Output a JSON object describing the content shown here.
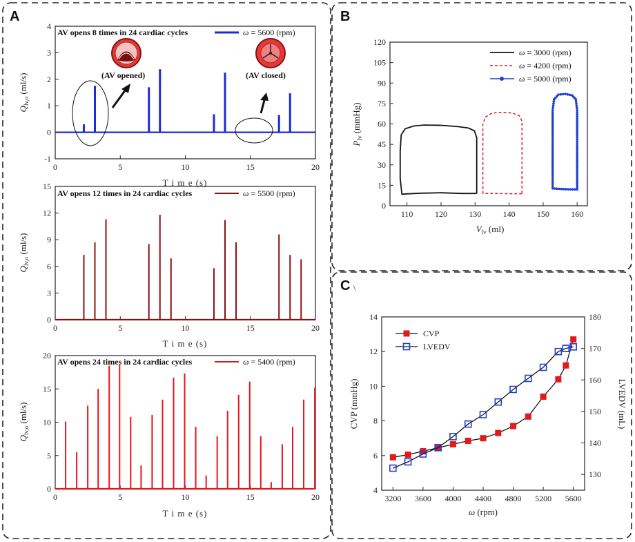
{
  "panels": {
    "A": "A",
    "B": "B",
    "C": "C",
    "c_mark": "\\"
  },
  "colors": {
    "blue": "#1a2bd6",
    "darkred": "#8b1111",
    "red": "#e8141c",
    "black": "#111111",
    "marker_red": "#e31a1c",
    "marker_blue": "#1f3fd0"
  },
  "chart_data": [
    {
      "id": "a1",
      "type": "line",
      "title": "AV opens 8 times in 24 cardiac cycles",
      "legend": {
        "symbol": "ω",
        "text": " = 5600 (rpm)"
      },
      "xlabel": "T i m e  (s)",
      "ylabel": {
        "base": "Q",
        "sub": "lv,o",
        "unit": " (ml/s)"
      },
      "xlim": [
        0,
        20
      ],
      "ylim": [
        -1,
        4
      ],
      "xticks": [
        0,
        5,
        10,
        15,
        20
      ],
      "yticks": [
        -1,
        0,
        1,
        2,
        3,
        4
      ],
      "baseline": 0,
      "spikes": [
        {
          "x": 2.2,
          "y": 0.3
        },
        {
          "x": 3.05,
          "y": 1.75
        },
        {
          "x": 7.2,
          "y": 1.7
        },
        {
          "x": 8.05,
          "y": 2.38
        },
        {
          "x": 12.2,
          "y": 0.68
        },
        {
          "x": 13.05,
          "y": 2.25
        },
        {
          "x": 17.2,
          "y": 0.65
        },
        {
          "x": 18.05,
          "y": 1.47
        }
      ],
      "annotations": {
        "opened": "(AV opened)",
        "closed": "(AV closed)"
      }
    },
    {
      "id": "a2",
      "type": "line",
      "title": "AV opens 12 times in 24 cardiac cycles",
      "legend": {
        "symbol": "ω",
        "text": " = 5500 (rpm)"
      },
      "xlabel": "T i m e  (s)",
      "ylabel": {
        "base": "Q",
        "sub": "lv,o",
        "unit": " (ml/s)"
      },
      "xlim": [
        0,
        20
      ],
      "ylim": [
        0,
        15
      ],
      "xticks": [
        0,
        5,
        10,
        15,
        20
      ],
      "yticks": [
        0,
        3,
        6,
        9,
        12,
        15
      ],
      "baseline": 0,
      "spikes": [
        {
          "x": 2.2,
          "y": 7.3
        },
        {
          "x": 3.05,
          "y": 8.7
        },
        {
          "x": 3.9,
          "y": 11.3
        },
        {
          "x": 7.2,
          "y": 8.5
        },
        {
          "x": 8.05,
          "y": 11.8
        },
        {
          "x": 8.9,
          "y": 6.9
        },
        {
          "x": 12.2,
          "y": 5.8
        },
        {
          "x": 13.05,
          "y": 11.2
        },
        {
          "x": 13.9,
          "y": 8.7
        },
        {
          "x": 17.2,
          "y": 9.6
        },
        {
          "x": 18.05,
          "y": 7.3
        },
        {
          "x": 18.9,
          "y": 6.8
        }
      ]
    },
    {
      "id": "a3",
      "type": "line",
      "title": "AV opens 24 times in 24 cardiac cycles",
      "legend": {
        "symbol": "ω",
        "text": " = 5400 (rpm)"
      },
      "xlabel": "T i m e  (s)",
      "ylabel": {
        "base": "Q",
        "sub": "lv,o",
        "unit": " (ml/s)"
      },
      "xlim": [
        0,
        20
      ],
      "ylim": [
        0,
        20
      ],
      "xticks": [
        0,
        5,
        10,
        15,
        20
      ],
      "yticks": [
        0,
        5,
        10,
        15,
        20
      ],
      "baseline": 0,
      "spikes": [
        {
          "x": 0.8,
          "y": 10.1
        },
        {
          "x": 1.65,
          "y": 5.5
        },
        {
          "x": 2.5,
          "y": 12.5
        },
        {
          "x": 3.3,
          "y": 15.0
        },
        {
          "x": 4.15,
          "y": 18.5
        },
        {
          "x": 4.95,
          "y": 18.7
        },
        {
          "x": 5.8,
          "y": 10.8
        },
        {
          "x": 6.6,
          "y": 3.5
        },
        {
          "x": 7.45,
          "y": 11.1
        },
        {
          "x": 8.25,
          "y": 13.4
        },
        {
          "x": 9.1,
          "y": 16.7
        },
        {
          "x": 9.95,
          "y": 17.3
        },
        {
          "x": 10.8,
          "y": 9.3
        },
        {
          "x": 11.6,
          "y": 2.0
        },
        {
          "x": 12.45,
          "y": 7.9
        },
        {
          "x": 13.25,
          "y": 11.7
        },
        {
          "x": 14.1,
          "y": 14.1
        },
        {
          "x": 14.95,
          "y": 16.1
        },
        {
          "x": 15.8,
          "y": 7.9
        },
        {
          "x": 16.6,
          "y": 1.0
        },
        {
          "x": 17.45,
          "y": 6.7
        },
        {
          "x": 18.25,
          "y": 9.3
        },
        {
          "x": 19.1,
          "y": 13.4
        },
        {
          "x": 19.95,
          "y": 15.2
        }
      ]
    },
    {
      "id": "b",
      "type": "line",
      "title": "",
      "xlabel": {
        "base": "V",
        "sub": "lv",
        "unit": " (ml)"
      },
      "ylabel": {
        "base": "P",
        "sub": "lv",
        "unit": " (mmHg)"
      },
      "xlim": [
        105,
        163
      ],
      "ylim": [
        0,
        120
      ],
      "xticks": [
        110,
        120,
        130,
        140,
        150,
        160
      ],
      "yticks": [
        0,
        15,
        30,
        45,
        60,
        75,
        90,
        105,
        120
      ],
      "series": [
        {
          "name": "ω = 3000 (rpm)",
          "legend_symbol": "ω",
          "legend_text": " = 3000 (rpm)",
          "style": "solid",
          "points": [
            [
              130.5,
              9
            ],
            [
              126,
              9
            ],
            [
              120,
              9.5
            ],
            [
              114,
              9.2
            ],
            [
              108.5,
              8.5
            ],
            [
              108,
              20
            ],
            [
              108,
              40
            ],
            [
              108.3,
              52
            ],
            [
              109.5,
              56.5
            ],
            [
              112,
              58.5
            ],
            [
              115,
              59.2
            ],
            [
              120,
              59
            ],
            [
              125,
              58
            ],
            [
              128,
              57
            ],
            [
              129.8,
              55
            ],
            [
              130.5,
              50
            ],
            [
              130.5,
              30
            ],
            [
              130.5,
              9
            ]
          ]
        },
        {
          "name": "ω = 4200 (rpm)",
          "legend_symbol": "ω",
          "legend_text": " = 4200 (rpm)",
          "style": "dashed",
          "points": [
            [
              143.8,
              8.8
            ],
            [
              140,
              8.8
            ],
            [
              136,
              9
            ],
            [
              132.3,
              9
            ],
            [
              132.3,
              30
            ],
            [
              132.3,
              60
            ],
            [
              133,
              65
            ],
            [
              135,
              68
            ],
            [
              138,
              68.5
            ],
            [
              141,
              68
            ],
            [
              143,
              66
            ],
            [
              143.8,
              62
            ],
            [
              143.8,
              30
            ],
            [
              143.8,
              8.8
            ]
          ]
        },
        {
          "name": "ω = 5000 (rpm)",
          "legend_symbol": "ω",
          "legend_text": " = 5000 (rpm)",
          "style": "dot-marker",
          "points": [
            [
              160,
              12
            ],
            [
              158,
              12
            ],
            [
              156,
              12.2
            ],
            [
              154,
              12.5
            ],
            [
              152.8,
              12.8
            ],
            [
              152.8,
              30
            ],
            [
              152.8,
              50
            ],
            [
              152.8,
              70
            ],
            [
              153.2,
              78
            ],
            [
              154.5,
              81.5
            ],
            [
              156.5,
              82
            ],
            [
              158.5,
              81
            ],
            [
              159.6,
              78
            ],
            [
              160,
              70
            ],
            [
              160,
              50
            ],
            [
              160,
              30
            ],
            [
              160,
              12
            ]
          ]
        }
      ]
    },
    {
      "id": "c",
      "type": "line",
      "title": "",
      "xlabel": {
        "symbol": "ω",
        "unit": " (rpm)"
      },
      "ylabel": "CVP (mmHg)",
      "ylabel_right": "LVEDV (mL)",
      "x": [
        3200,
        3400,
        3600,
        3800,
        4000,
        4200,
        4400,
        4600,
        4800,
        5000,
        5200,
        5400,
        5500,
        5600
      ],
      "xlim": [
        3050,
        5750
      ],
      "ylim": [
        4,
        14
      ],
      "ylim_right": [
        125,
        180
      ],
      "xticks": [
        3200,
        3600,
        4000,
        4400,
        4800,
        5200,
        5600
      ],
      "yticks": [
        4,
        6,
        8,
        10,
        12,
        14
      ],
      "yticks_right": [
        130,
        140,
        150,
        160,
        170,
        180
      ],
      "series": [
        {
          "name": "CVP",
          "axis": "left",
          "marker": "filled-square",
          "values": [
            5.9,
            6.05,
            6.25,
            6.45,
            6.65,
            6.85,
            7.0,
            7.3,
            7.7,
            8.25,
            9.4,
            10.4,
            11.2,
            12.7
          ]
        },
        {
          "name": "LVEDV",
          "axis": "right",
          "marker": "open-square",
          "values": [
            132,
            134,
            136.5,
            138.5,
            142,
            146,
            149,
            153,
            157,
            160.5,
            164,
            169,
            170,
            170.5
          ]
        }
      ]
    }
  ]
}
